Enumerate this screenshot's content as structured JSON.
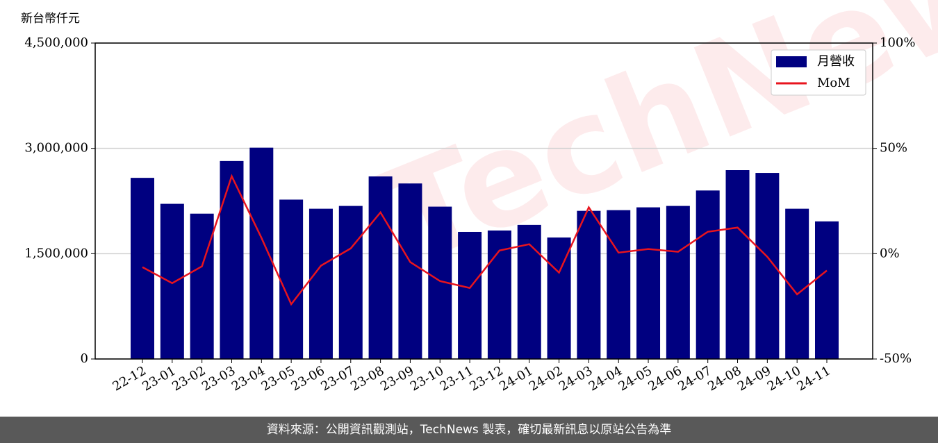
{
  "chart_data": {
    "type": "bar_line",
    "y_label": "新台幣仟元",
    "categories": [
      "22-12",
      "23-01",
      "23-02",
      "23-03",
      "23-04",
      "23-05",
      "23-06",
      "23-07",
      "23-08",
      "23-09",
      "23-10",
      "23-11",
      "23-12",
      "24-01",
      "24-02",
      "24-03",
      "24-04",
      "24-05",
      "24-06",
      "24-07",
      "24-08",
      "24-09",
      "24-10",
      "24-11"
    ],
    "series": [
      {
        "name": "月營收",
        "type": "bar",
        "color": "#000080",
        "axis": "y",
        "values": [
          2580000,
          2210000,
          2070000,
          2820000,
          3010000,
          2270000,
          2140000,
          2180000,
          2600000,
          2500000,
          2170000,
          1810000,
          1830000,
          1910000,
          1730000,
          2110000,
          2120000,
          2160000,
          2180000,
          2400000,
          2690000,
          2650000,
          2140000,
          1960000
        ]
      },
      {
        "name": "MoM",
        "type": "line",
        "color": "#e8141e",
        "axis": "y2",
        "values": [
          -6.4,
          -14,
          -6,
          36.8,
          7.5,
          -24,
          -5.7,
          2.5,
          19.6,
          -4,
          -13,
          -16.3,
          1.5,
          4.5,
          -9,
          22,
          0.5,
          2.2,
          0.9,
          10.4,
          12.4,
          -1.5,
          -19.3,
          -8
        ]
      }
    ],
    "ylim": [
      0,
      4500000
    ],
    "yticks": [
      {
        "value": 0,
        "label": "0"
      },
      {
        "value": 1500000,
        "label": "1,500,000"
      },
      {
        "value": 3000000,
        "label": "3,000,000"
      },
      {
        "value": 4500000,
        "label": "4,500,000"
      }
    ],
    "y2lim": [
      -50,
      100
    ],
    "y2ticks": [
      {
        "value": -50,
        "label": "-50%"
      },
      {
        "value": 0,
        "label": "0%"
      },
      {
        "value": 50,
        "label": "50%"
      },
      {
        "value": 100,
        "label": "100%"
      }
    ],
    "grid": true,
    "legend": "upper right"
  },
  "watermark": "TechNews",
  "footer": "資料來源：公開資訊觀測站，TechNews 製表，確切最新訊息以原站公告為準"
}
